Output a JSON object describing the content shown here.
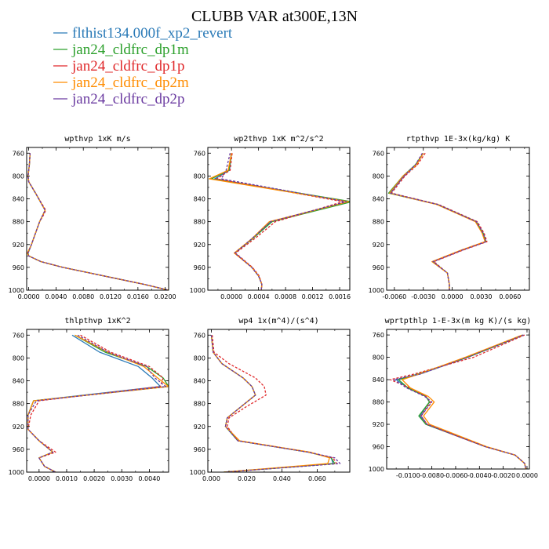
{
  "figure_title": "CLUBB VAR at300E,13N",
  "colors": {
    "flthist134.000f_xp2_revert": "#2a7ab7",
    "jan24_cldfrc_dp1m": "#2ca02c",
    "jan24_cldfrc_dp1p": "#e0282a",
    "jan24_cldfrc_dp2m": "#ff8c00",
    "jan24_cldfrc_dp2p": "#6a3aa0"
  },
  "legend": [
    {
      "name": "flthist134.000f_xp2_revert",
      "dash": false
    },
    {
      "name": "jan24_cldfrc_dp1m",
      "dash": false
    },
    {
      "name": "jan24_cldfrc_dp1p",
      "dash": true
    },
    {
      "name": "jan24_cldfrc_dp2m",
      "dash": false
    },
    {
      "name": "jan24_cldfrc_dp2p",
      "dash": true
    }
  ],
  "chart_data": [
    {
      "type": "line",
      "title": "wpthvp  1xK m/s",
      "ylim": [
        1000,
        750
      ],
      "yticks": [
        "760",
        "800",
        "840",
        "880",
        "920",
        "960",
        "1000"
      ],
      "yticks_values": [
        760,
        800,
        840,
        880,
        920,
        960,
        1000
      ],
      "xlim": [
        -0.0003,
        0.0205
      ],
      "xticks": [
        "0.0000",
        "0.0040",
        "0.0080",
        "0.0120",
        "0.0160",
        "0.0200"
      ],
      "xticks_values": [
        0,
        0.004,
        0.008,
        0.012,
        0.016,
        0.02
      ],
      "y": [
        760,
        780,
        800,
        810,
        830,
        860,
        870,
        880,
        900,
        920,
        935,
        940,
        950,
        960,
        970,
        980,
        990,
        1000
      ],
      "series": [
        {
          "name": "flthist134.000f_xp2_revert",
          "values": [
            0.0002,
            0.0001,
            -0.0001,
            0.0,
            0.001,
            0.0024,
            0.002,
            0.0016,
            0.001,
            0.0004,
            -0.0001,
            0.0,
            0.0018,
            0.005,
            0.009,
            0.013,
            0.017,
            0.0205
          ]
        },
        {
          "name": "jan24_cldfrc_dp1m",
          "values": [
            0.0002,
            0.0001,
            -0.0001,
            0.0,
            0.001,
            0.0024,
            0.002,
            0.0016,
            0.001,
            0.0004,
            -0.0001,
            0.0,
            0.0018,
            0.005,
            0.009,
            0.013,
            0.017,
            0.0205
          ]
        },
        {
          "name": "jan24_cldfrc_dp1p",
          "values": [
            0.0002,
            0.0001,
            -0.0001,
            0.0,
            0.001,
            0.0025,
            0.0021,
            0.0016,
            0.001,
            0.0004,
            -0.0001,
            0.0,
            0.0018,
            0.005,
            0.009,
            0.013,
            0.017,
            0.0205
          ]
        },
        {
          "name": "jan24_cldfrc_dp2m",
          "values": [
            0.0002,
            0.0001,
            -0.0001,
            0.0,
            0.001,
            0.0024,
            0.002,
            0.0016,
            0.001,
            0.0004,
            -0.0002,
            0.0,
            0.0018,
            0.005,
            0.009,
            0.013,
            0.017,
            0.0205
          ]
        },
        {
          "name": "jan24_cldfrc_dp2p",
          "values": [
            0.0002,
            0.0001,
            -0.0001,
            0.0,
            0.001,
            0.0024,
            0.002,
            0.0016,
            0.001,
            0.0004,
            -0.0001,
            0.0,
            0.0018,
            0.005,
            0.009,
            0.013,
            0.017,
            0.0205
          ]
        }
      ]
    },
    {
      "type": "line",
      "title": "wp2thvp  1xK m^2/s^2",
      "ylim": [
        1000,
        750
      ],
      "yticks": [
        "760",
        "800",
        "840",
        "880",
        "920",
        "960",
        "1000"
      ],
      "yticks_values": [
        760,
        800,
        840,
        880,
        920,
        960,
        1000
      ],
      "xlim": [
        -0.00035,
        0.00175
      ],
      "xticks": [
        "0.0000",
        "0.0004",
        "0.0008",
        "0.0012",
        "0.0016"
      ],
      "xticks_values": [
        0,
        0.0004,
        0.0008,
        0.0012,
        0.0016
      ],
      "y": [
        760,
        790,
        805,
        845,
        880,
        910,
        935,
        960,
        975,
        990,
        1000
      ],
      "series": [
        {
          "name": "flthist134.000f_xp2_revert",
          "values": [
            0.0,
            -3e-05,
            -0.00025,
            0.00172,
            0.00058,
            0.0003,
            5e-05,
            0.0003,
            0.0004,
            0.00045,
            0.00044
          ]
        },
        {
          "name": "jan24_cldfrc_dp1m",
          "values": [
            0.0,
            -4e-05,
            -0.0003,
            0.00178,
            0.0006,
            0.00031,
            5e-05,
            0.0003,
            0.0004,
            0.00045,
            0.00044
          ]
        },
        {
          "name": "jan24_cldfrc_dp1p",
          "values": [
            1e-05,
            -2e-05,
            -0.00022,
            0.00165,
            0.00065,
            0.00034,
            6e-05,
            0.00031,
            0.00041,
            0.00045,
            0.00044
          ]
        },
        {
          "name": "jan24_cldfrc_dp2m",
          "values": [
            0.0,
            -5e-05,
            -0.00033,
            0.00173,
            0.00056,
            0.0003,
            4e-05,
            0.0003,
            0.0004,
            0.00045,
            0.00044
          ]
        },
        {
          "name": "jan24_cldfrc_dp2p",
          "values": [
            -2e-05,
            -8e-05,
            -0.00015,
            0.0017,
            0.00058,
            0.0003,
            5e-05,
            0.0003,
            0.0004,
            0.00045,
            0.00044
          ]
        }
      ]
    },
    {
      "type": "line",
      "title": "rtpthvp  1E-3x(kg/kg) K",
      "ylim": [
        1000,
        750
      ],
      "yticks": [
        "760",
        "800",
        "840",
        "880",
        "920",
        "960",
        "1000"
      ],
      "yticks_values": [
        760,
        800,
        840,
        880,
        920,
        960,
        1000
      ],
      "xlim": [
        -0.0068,
        0.008
      ],
      "xticks": [
        "-0.0060",
        "-0.0030",
        "0.0000",
        "0.0030",
        "0.0060"
      ],
      "xticks_values": [
        -0.006,
        -0.003,
        0,
        0.003,
        0.006
      ],
      "y": [
        760,
        780,
        800,
        830,
        850,
        880,
        900,
        915,
        930,
        950,
        970,
        990,
        1000
      ],
      "series": [
        {
          "name": "flthist134.000f_xp2_revert",
          "values": [
            -0.003,
            -0.0037,
            -0.005,
            -0.0064,
            -0.0015,
            0.0025,
            0.0032,
            0.0035,
            0.001,
            -0.002,
            -0.0005,
            -0.0003,
            -0.0003
          ]
        },
        {
          "name": "jan24_cldfrc_dp1m",
          "values": [
            -0.003,
            -0.0038,
            -0.0051,
            -0.0066,
            -0.0015,
            0.0025,
            0.0032,
            0.0035,
            0.001,
            -0.002,
            -0.0005,
            -0.0003,
            -0.0003
          ]
        },
        {
          "name": "jan24_cldfrc_dp1p",
          "values": [
            -0.0028,
            -0.0036,
            -0.0049,
            -0.0063,
            -0.0014,
            0.0026,
            0.0033,
            0.0036,
            0.0011,
            -0.0019,
            -0.0005,
            -0.0003,
            -0.0003
          ]
        },
        {
          "name": "jan24_cldfrc_dp2m",
          "values": [
            -0.003,
            -0.0037,
            -0.0051,
            -0.0065,
            -0.0016,
            0.0024,
            0.0031,
            0.0034,
            0.0009,
            -0.0021,
            -0.0005,
            -0.0003,
            -0.0003
          ]
        },
        {
          "name": "jan24_cldfrc_dp2p",
          "values": [
            -0.0031,
            -0.0038,
            -0.005,
            -0.0064,
            -0.0015,
            0.0025,
            0.0032,
            0.0035,
            0.001,
            -0.002,
            -0.0005,
            -0.0003,
            -0.0003
          ]
        }
      ]
    },
    {
      "type": "line",
      "title": "thlpthvp  1xK^2",
      "ylim": [
        1000,
        750
      ],
      "yticks": [
        "760",
        "800",
        "840",
        "880",
        "920",
        "960",
        "1000"
      ],
      "yticks_values": [
        760,
        800,
        840,
        880,
        920,
        960,
        1000
      ],
      "xlim": [
        -0.00045,
        0.0047
      ],
      "xticks": [
        "0.0000",
        "0.0010",
        "0.0020",
        "0.0030",
        "0.0040"
      ],
      "xticks_values": [
        0,
        0.001,
        0.002,
        0.003,
        0.004
      ],
      "y": [
        760,
        790,
        815,
        835,
        850,
        875,
        900,
        925,
        945,
        965,
        975,
        990,
        1000
      ],
      "series": [
        {
          "name": "flthist134.000f_xp2_revert",
          "values": [
            0.0012,
            0.0022,
            0.0036,
            0.0041,
            0.0044,
            -0.0002,
            -0.0004,
            -0.0004,
            0.0,
            0.0005,
            0.0,
            0.0002,
            0.0006
          ]
        },
        {
          "name": "jan24_cldfrc_dp1m",
          "values": [
            0.0013,
            0.0024,
            0.0039,
            0.0045,
            0.0047,
            -0.0002,
            -0.0004,
            -0.0004,
            0.0,
            0.0005,
            0.0,
            0.0002,
            0.0006
          ]
        },
        {
          "name": "jan24_cldfrc_dp1p",
          "values": [
            0.0015,
            0.0026,
            0.004,
            0.0045,
            0.0044,
            0.0,
            -0.0003,
            -0.0004,
            0.0,
            0.0006,
            0.0,
            0.0002,
            0.0006
          ]
        },
        {
          "name": "jan24_cldfrc_dp2m",
          "values": [
            0.0013,
            0.0025,
            0.0038,
            0.0043,
            0.0047,
            -0.0002,
            -0.0004,
            -0.0004,
            0.0,
            0.0005,
            0.0,
            0.0002,
            0.0006
          ]
        },
        {
          "name": "jan24_cldfrc_dp2p",
          "values": [
            0.0014,
            0.0025,
            0.0039,
            0.0042,
            0.0046,
            -0.0001,
            -0.0004,
            -0.0004,
            0.0,
            0.0005,
            0.0,
            0.0002,
            0.0006
          ]
        }
      ]
    },
    {
      "type": "line",
      "title": "wp4  1x(m^4)/(s^4)",
      "ylim": [
        1000,
        750
      ],
      "yticks": [
        "760",
        "800",
        "840",
        "880",
        "920",
        "960",
        "1000"
      ],
      "yticks_values": [
        760,
        800,
        840,
        880,
        920,
        960,
        1000
      ],
      "xlim": [
        -0.002,
        0.0785
      ],
      "xticks": [
        "0.000",
        "0.020",
        "0.040",
        "0.060"
      ],
      "xticks_values": [
        0,
        0.02,
        0.04,
        0.06
      ],
      "y": [
        760,
        790,
        810,
        835,
        850,
        865,
        885,
        905,
        920,
        945,
        965,
        975,
        985,
        1000
      ],
      "series": [
        {
          "name": "flthist134.000f_xp2_revert",
          "values": [
            0.0,
            0.001,
            0.006,
            0.018,
            0.023,
            0.025,
            0.017,
            0.009,
            0.008,
            0.015,
            0.055,
            0.068,
            0.069,
            0.007
          ]
        },
        {
          "name": "jan24_cldfrc_dp1m",
          "values": [
            0.0,
            0.001,
            0.006,
            0.018,
            0.023,
            0.025,
            0.017,
            0.009,
            0.008,
            0.015,
            0.055,
            0.068,
            0.07,
            0.007
          ]
        },
        {
          "name": "jan24_cldfrc_dp1p",
          "values": [
            0.0005,
            0.0015,
            0.01,
            0.025,
            0.03,
            0.031,
            0.02,
            0.01,
            0.009,
            0.015,
            0.055,
            0.069,
            0.071,
            0.0075
          ]
        },
        {
          "name": "jan24_cldfrc_dp2m",
          "values": [
            0.0,
            0.001,
            0.006,
            0.018,
            0.023,
            0.025,
            0.017,
            0.009,
            0.008,
            0.016,
            0.056,
            0.067,
            0.066,
            0.007
          ]
        },
        {
          "name": "jan24_cldfrc_dp2p",
          "values": [
            0.0,
            0.001,
            0.006,
            0.018,
            0.023,
            0.025,
            0.017,
            0.009,
            0.008,
            0.015,
            0.055,
            0.07,
            0.073,
            0.0075
          ]
        }
      ]
    },
    {
      "type": "line",
      "title": "wprtpthlp  1-E-3x(m kg K)/(s kg)",
      "ylim": [
        1000,
        750
      ],
      "yticks": [
        "760",
        "800",
        "840",
        "880",
        "920",
        "960",
        "1000"
      ],
      "yticks_values": [
        760,
        800,
        840,
        880,
        920,
        960,
        1000
      ],
      "xlim": [
        -0.0118,
        0.0002
      ],
      "xticks": [
        "-0.0100",
        "-0.0080",
        "-0.0060",
        "-0.0040",
        "-0.0020",
        "0.0000"
      ],
      "xticks_values": [
        -0.01,
        -0.008,
        -0.006,
        -0.004,
        -0.002,
        0
      ],
      "y": [
        760,
        800,
        830,
        840,
        855,
        870,
        880,
        905,
        920,
        940,
        960,
        975,
        990,
        1000
      ],
      "series": [
        {
          "name": "flthist134.000f_xp2_revert",
          "values": [
            -0.0003,
            -0.005,
            -0.009,
            -0.011,
            -0.01,
            -0.0085,
            -0.0082,
            -0.009,
            -0.0085,
            -0.006,
            -0.0035,
            -0.001,
            -0.0002,
            -0.0001
          ]
        },
        {
          "name": "jan24_cldfrc_dp1m",
          "values": [
            -0.0003,
            -0.005,
            -0.0092,
            -0.0108,
            -0.01,
            -0.0085,
            -0.0082,
            -0.0091,
            -0.0085,
            -0.006,
            -0.0035,
            -0.001,
            -0.0002,
            -0.0001
          ]
        },
        {
          "name": "jan24_cldfrc_dp1p",
          "values": [
            -0.0002,
            -0.0045,
            -0.0095,
            -0.0115,
            -0.0098,
            -0.0085,
            -0.0081,
            -0.0089,
            -0.0084,
            -0.006,
            -0.0035,
            -0.001,
            -0.0002,
            -0.0001
          ]
        },
        {
          "name": "jan24_cldfrc_dp2m",
          "values": [
            -0.0004,
            -0.0052,
            -0.0091,
            -0.0105,
            -0.0098,
            -0.0083,
            -0.0078,
            -0.0087,
            -0.0082,
            -0.0058,
            -0.0034,
            -0.001,
            -0.0002,
            -0.0001
          ]
        },
        {
          "name": "jan24_cldfrc_dp2p",
          "values": [
            -0.0003,
            -0.005,
            -0.009,
            -0.0112,
            -0.0101,
            -0.0086,
            -0.008,
            -0.0089,
            -0.0084,
            -0.006,
            -0.0035,
            -0.001,
            -0.0002,
            -0.0001
          ]
        }
      ]
    }
  ]
}
